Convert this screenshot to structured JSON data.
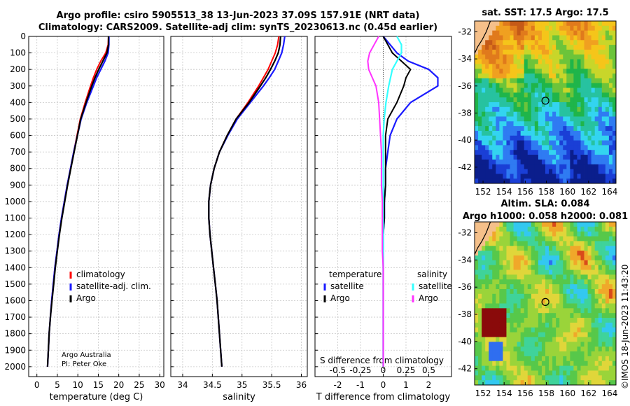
{
  "header": {
    "line1": "Argo profile: csiro 5905513_38 13-Jun-2023 37.09S 157.91E (NRT data)",
    "line2": "Climatology: CARS2009. Satellite-adj clim: synTS_20230613.nc (0.45d earlier)"
  },
  "credits": {
    "org": "Argo Australia",
    "pi": "PI: Peter Oke"
  },
  "stamp": "©IMOS 18-Jun-2023 11:43:20",
  "colors": {
    "climatology": "#ff0000",
    "satellite": "#1a1aff",
    "argo": "#000000",
    "sat_salinity": "#33ffff",
    "argo_salinity": "#ff33ff"
  },
  "chart_data": [
    {
      "type": "line",
      "id": "temperature",
      "xlabel": "temperature (deg C)",
      "ylabel": "",
      "xlim": [
        -2,
        31
      ],
      "ylim": [
        2060,
        0
      ],
      "xticks": [
        0,
        5,
        10,
        15,
        20,
        25,
        30
      ],
      "yticks": [
        0,
        100,
        200,
        300,
        400,
        500,
        600,
        700,
        800,
        900,
        1000,
        1100,
        1200,
        1300,
        1400,
        1500,
        1600,
        1700,
        1800,
        1900,
        2000
      ],
      "legend": [
        "climatology",
        "satellite-adj. clim.",
        "Argo"
      ],
      "depth": [
        0,
        50,
        100,
        150,
        200,
        250,
        300,
        400,
        500,
        600,
        700,
        800,
        900,
        1000,
        1100,
        1200,
        1300,
        1400,
        1500,
        1600,
        1700,
        1800,
        1900,
        2000
      ],
      "series": [
        {
          "name": "climatology",
          "values": [
            17.5,
            17.4,
            16.8,
            15.6,
            14.6,
            13.8,
            13.1,
            11.8,
            10.6,
            9.8,
            9.0,
            8.2,
            7.4,
            6.7,
            6.0,
            5.4,
            4.9,
            4.4,
            4.0,
            3.6,
            3.3,
            3.0,
            2.8,
            2.6
          ]
        },
        {
          "name": "satellite-adj. clim.",
          "values": [
            17.6,
            17.6,
            17.4,
            16.6,
            15.6,
            14.6,
            13.8,
            12.2,
            10.8,
            9.9,
            9.0,
            8.2,
            7.4,
            6.7,
            6.0,
            5.4,
            4.9,
            4.4,
            4.0,
            3.6,
            3.3,
            3.0,
            2.8,
            2.6
          ]
        },
        {
          "name": "Argo",
          "values": [
            17.5,
            17.5,
            17.1,
            16.1,
            15.1,
            14.2,
            13.4,
            12.0,
            10.7,
            9.9,
            9.1,
            8.3,
            7.5,
            6.8,
            6.1,
            5.5,
            5.0,
            4.5,
            4.1,
            3.7,
            3.3,
            3.0,
            2.8,
            2.6
          ]
        }
      ]
    },
    {
      "type": "line",
      "id": "salinity",
      "xlabel": "salinity",
      "xlim": [
        33.8,
        36.1
      ],
      "ylim": [
        2060,
        0
      ],
      "xticks": [
        34,
        34.5,
        35,
        35.5,
        36
      ],
      "depth": [
        0,
        50,
        100,
        150,
        200,
        250,
        300,
        400,
        500,
        600,
        700,
        800,
        900,
        1000,
        1100,
        1200,
        1300,
        1400,
        1500,
        1600,
        1700,
        1800,
        1900,
        2000
      ],
      "series": [
        {
          "name": "climatology",
          "values": [
            35.62,
            35.6,
            35.56,
            35.5,
            35.44,
            35.36,
            35.28,
            35.1,
            34.9,
            34.75,
            34.62,
            34.53,
            34.47,
            34.44,
            34.44,
            34.46,
            34.49,
            34.52,
            34.55,
            34.58,
            34.6,
            34.62,
            34.64,
            34.66
          ]
        },
        {
          "name": "satellite-adj. clim.",
          "values": [
            35.72,
            35.7,
            35.67,
            35.61,
            35.55,
            35.46,
            35.36,
            35.14,
            34.92,
            34.76,
            34.62,
            34.53,
            34.47,
            34.44,
            34.44,
            34.46,
            34.49,
            34.52,
            34.55,
            34.58,
            34.6,
            34.62,
            34.64,
            34.66
          ]
        },
        {
          "name": "Argo",
          "values": [
            35.65,
            35.64,
            35.61,
            35.55,
            35.48,
            35.4,
            35.31,
            35.12,
            34.9,
            34.75,
            34.62,
            34.53,
            34.47,
            34.44,
            34.44,
            34.46,
            34.49,
            34.52,
            34.55,
            34.58,
            34.6,
            34.62,
            34.64,
            34.66
          ]
        }
      ]
    },
    {
      "type": "line",
      "id": "difference",
      "xlabel": "T difference from climatology",
      "xlabel2": "S difference from climatology",
      "xlim": [
        -3,
        3
      ],
      "ylim": [
        2060,
        0
      ],
      "xticks": [
        -2,
        -1,
        0,
        1,
        2
      ],
      "xticks_s": [
        "-0.5",
        "-0.25",
        "0",
        "0.25",
        "0.5"
      ],
      "legend_left_title": "temperature",
      "legend_right_title": "salinity",
      "legend": [
        "satellite",
        "Argo",
        "satellite",
        "Argo"
      ],
      "depth": [
        0,
        50,
        100,
        150,
        200,
        250,
        300,
        400,
        500,
        600,
        700,
        800,
        900,
        1000,
        1100,
        1200,
        1300,
        1400,
        1500,
        1600,
        1700,
        1800,
        1900,
        2000
      ],
      "series": [
        {
          "name": "T satellite",
          "values": [
            0.0,
            0.3,
            0.6,
            1.1,
            2.0,
            2.4,
            2.4,
            1.2,
            0.6,
            0.3,
            0.2,
            0.1,
            0.1,
            0.05,
            0.05,
            0.0,
            0.0,
            0.0,
            0.0,
            0.0,
            0.0,
            0.0,
            0.0,
            0.0
          ]
        },
        {
          "name": "T Argo",
          "values": [
            0.0,
            0.2,
            0.4,
            0.8,
            1.2,
            1.0,
            0.9,
            0.6,
            0.2,
            0.1,
            0.1,
            0.1,
            0.1,
            0.05,
            0.05,
            0.0,
            0.0,
            0.0,
            0.0,
            0.0,
            0.0,
            0.0,
            0.0,
            0.0
          ]
        },
        {
          "name": "S satellite",
          "values": [
            0.15,
            0.2,
            0.2,
            0.15,
            0.1,
            0.08,
            0.06,
            0.03,
            0.01,
            0.0,
            0.0,
            0.0,
            0.0,
            0.0,
            0.0,
            0.0,
            0.0,
            0.0,
            0.0,
            0.0,
            0.0,
            0.0,
            0.0,
            0.0
          ]
        },
        {
          "name": "S Argo",
          "values": [
            -0.05,
            -0.1,
            -0.15,
            -0.17,
            -0.16,
            -0.12,
            -0.08,
            -0.05,
            -0.04,
            -0.03,
            -0.02,
            -0.02,
            -0.02,
            -0.01,
            -0.01,
            -0.01,
            -0.01,
            0.0,
            0.0,
            0.0,
            0.0,
            0.0,
            0.0,
            0.0
          ]
        }
      ]
    },
    {
      "type": "heatmap",
      "id": "sst_map",
      "title": "sat. SST: 17.5  Argo: 17.5",
      "xlim": [
        151.2,
        164.6
      ],
      "ylim": [
        -43.2,
        -31.2
      ],
      "xticks": [
        152,
        154,
        156,
        158,
        160,
        162,
        164
      ],
      "yticks": [
        -32,
        -34,
        -36,
        -38,
        -40,
        -42
      ],
      "argo_position": [
        157.91,
        -37.09
      ]
    },
    {
      "type": "heatmap",
      "id": "sla_map",
      "title_line1": "Altim. SLA: 0.084",
      "title_line2": "Argo h1000: 0.058 h2000: 0.081",
      "xlim": [
        151.2,
        164.6
      ],
      "ylim": [
        -43.2,
        -31.2
      ],
      "xticks": [
        152,
        154,
        156,
        158,
        160,
        162,
        164
      ],
      "yticks": [
        -32,
        -34,
        -36,
        -38,
        -40,
        -42
      ],
      "argo_position": [
        157.91,
        -37.09
      ]
    }
  ]
}
